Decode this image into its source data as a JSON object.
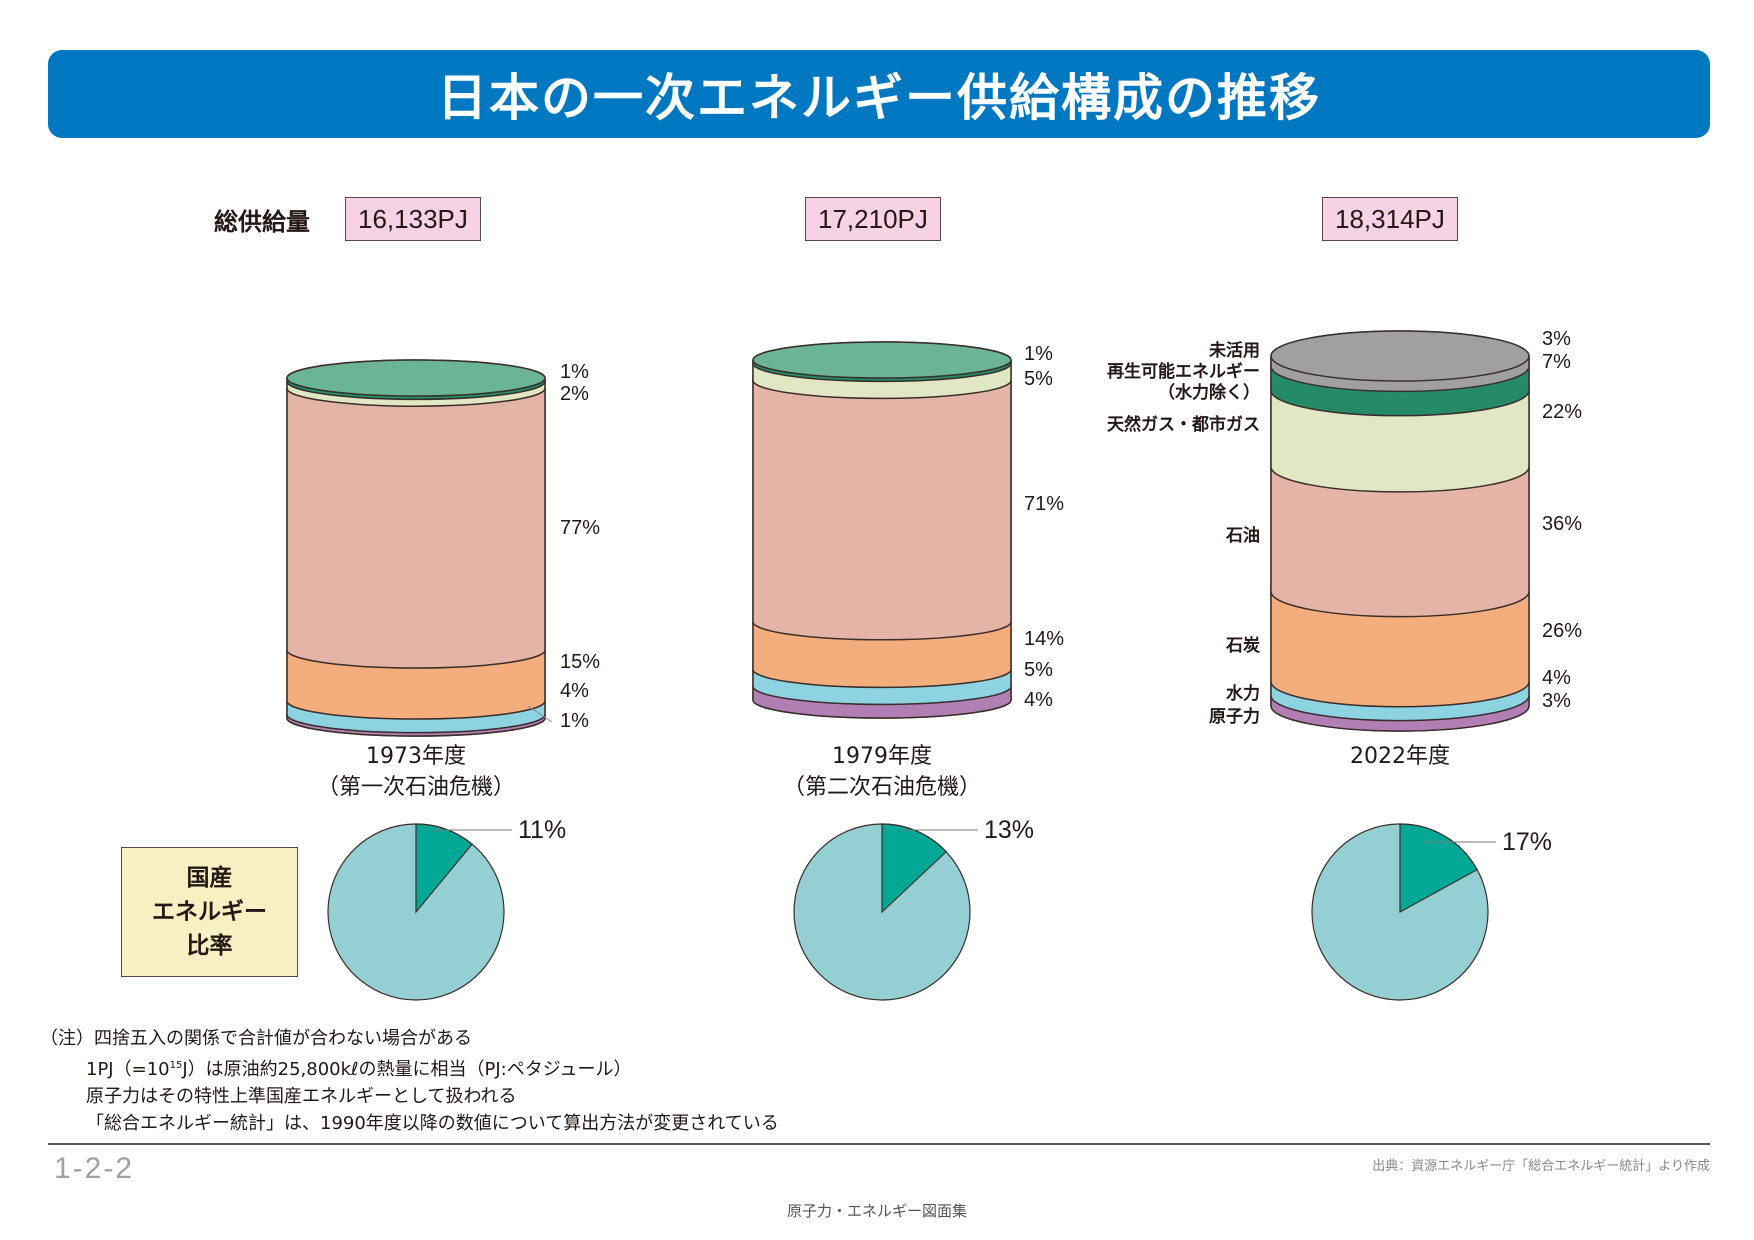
{
  "title": "日本の一次エネルギー供給構成の推移",
  "total_label": "総供給量",
  "colors": {
    "unused": "#a0a0a0",
    "renewable": "#248a68",
    "renewable_top": "#6cb496",
    "gas": "#e1e6c3",
    "oil": "#e4b5a7",
    "coal": "#f4ae7d",
    "hydro": "#8dd3e2",
    "nuclear": "#b27fb4",
    "domestic": "#00a895",
    "imported": "#94cfd3",
    "outline": "#3a2e2a"
  },
  "chart_data": {
    "type": "stacked-cylinder-and-pie",
    "title": "日本の一次エネルギー供給構成の推移",
    "categories_order_bottom_to_top": [
      "原子力",
      "水力",
      "石炭",
      "石油",
      "天然ガス・都市ガス",
      "再生可能エネルギー（水力除く）",
      "未活用"
    ],
    "bars": [
      {
        "year": "1973年度",
        "note": "（第一次石油危機）",
        "total": "16,133PJ",
        "segments": [
          {
            "name": "原子力",
            "key": "nuclear",
            "value": 1,
            "label": "1%"
          },
          {
            "name": "水力",
            "key": "hydro",
            "value": 4,
            "label": "4%"
          },
          {
            "name": "石炭",
            "key": "coal",
            "value": 15,
            "label": "15%"
          },
          {
            "name": "石油",
            "key": "oil",
            "value": 77,
            "label": "77%"
          },
          {
            "name": "天然ガス・都市ガス",
            "key": "gas",
            "value": 2,
            "label": "2%"
          },
          {
            "name": "再生可能エネルギー（水力除く）",
            "key": "renewable",
            "value": 1,
            "label": "1%"
          }
        ],
        "domestic_ratio": 11,
        "domestic_ratio_label": "11%"
      },
      {
        "year": "1979年度",
        "note": "（第二次石油危機）",
        "total": "17,210PJ",
        "segments": [
          {
            "name": "原子力",
            "key": "nuclear",
            "value": 4,
            "label": "4%"
          },
          {
            "name": "水力",
            "key": "hydro",
            "value": 5,
            "label": "5%"
          },
          {
            "name": "石炭",
            "key": "coal",
            "value": 14,
            "label": "14%"
          },
          {
            "name": "石油",
            "key": "oil",
            "value": 71,
            "label": "71%"
          },
          {
            "name": "天然ガス・都市ガス",
            "key": "gas",
            "value": 5,
            "label": "5%"
          },
          {
            "name": "再生可能エネルギー（水力除く）",
            "key": "renewable",
            "value": 1,
            "label": "1%"
          }
        ],
        "domestic_ratio": 13,
        "domestic_ratio_label": "13%"
      },
      {
        "year": "2022年度",
        "note": "",
        "total": "18,314PJ",
        "segments": [
          {
            "name": "原子力",
            "key": "nuclear",
            "value": 3,
            "label": "3%"
          },
          {
            "name": "水力",
            "key": "hydro",
            "value": 4,
            "label": "4%"
          },
          {
            "name": "石炭",
            "key": "coal",
            "value": 26,
            "label": "26%"
          },
          {
            "name": "石油",
            "key": "oil",
            "value": 36,
            "label": "36%"
          },
          {
            "name": "天然ガス・都市ガス",
            "key": "gas",
            "value": 22,
            "label": "22%"
          },
          {
            "name": "再生可能エネルギー（水力除く）",
            "key": "renewable",
            "value": 7,
            "label": "7%"
          },
          {
            "name": "未活用",
            "key": "unused",
            "value": 3,
            "label": "3%"
          }
        ],
        "domestic_ratio": 17,
        "domestic_ratio_label": "17%"
      }
    ],
    "category_labels_2022": {
      "unused": "未活用",
      "renewable_line1": "再生可能エネルギー",
      "renewable_line2": "（水力除く）",
      "gas": "天然ガス・都市ガス",
      "oil": "石油",
      "coal": "石炭",
      "hydro": "水力",
      "nuclear": "原子力"
    },
    "pie_legend": "国産エネルギー比率"
  },
  "ratio_box": {
    "line1": "国産",
    "line2": "エネルギー",
    "line3": "比率"
  },
  "notes": {
    "line1": "（注）四捨五入の関係で合計値が合わない場合がある",
    "line2_pre": "1PJ（=10",
    "line2_sup": "15",
    "line2_post": "J）は原油約25,800kℓの熱量に相当（PJ:ペタジュール）",
    "line3": "原子力はその特性上準国産エネルギーとして扱われる",
    "line4": "「総合エネルギー統計」は、1990年度以降の数値について算出方法が変更されている"
  },
  "page_number": "1-2-2",
  "source": "出典：資源エネルギー庁「総合エネルギー統計」より作成",
  "footer": "原子力・エネルギー図面集"
}
